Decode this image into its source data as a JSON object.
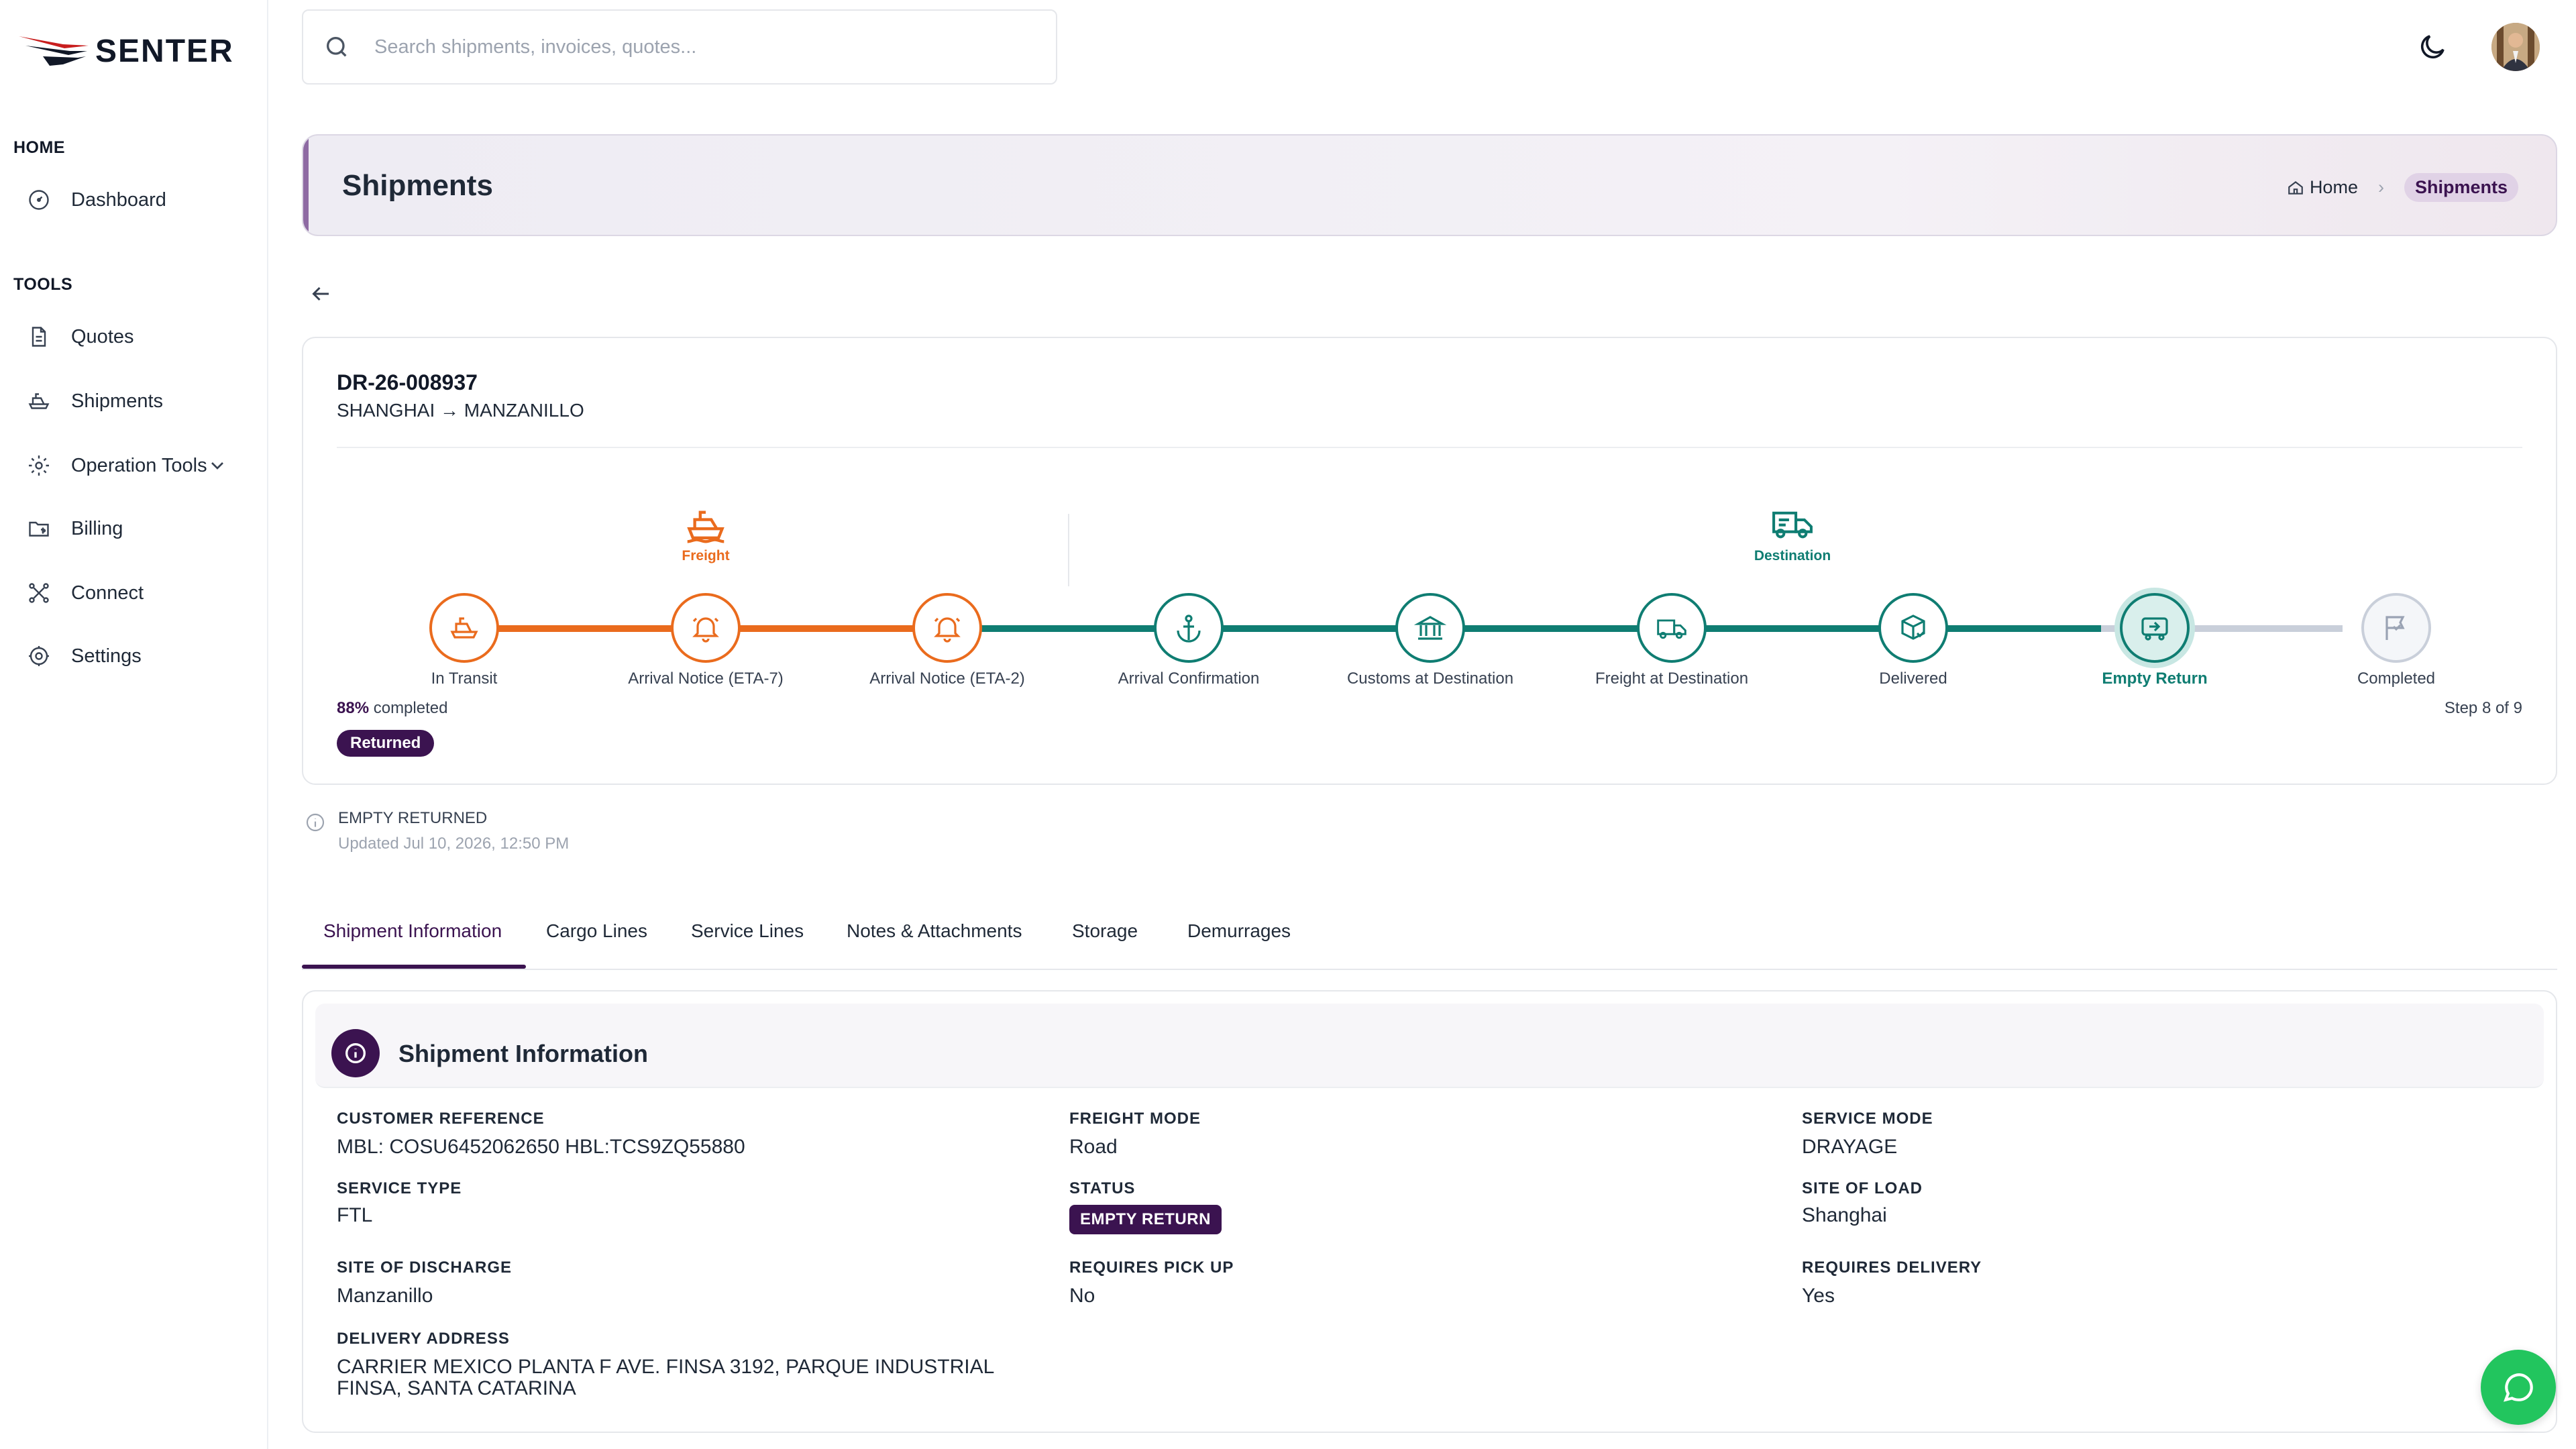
{
  "brand": {
    "name": "SENTER"
  },
  "sidebar": {
    "sections": [
      {
        "title": "HOME",
        "items": [
          {
            "label": "Dashboard",
            "icon": "gauge-icon"
          }
        ]
      },
      {
        "title": "TOOLS",
        "items": [
          {
            "label": "Quotes",
            "icon": "document-icon"
          },
          {
            "label": "Shipments",
            "icon": "ship-icon"
          },
          {
            "label": "Operation Tools",
            "icon": "gear-cog-icon",
            "expandable": true
          },
          {
            "label": "Billing",
            "icon": "folder-dollar-icon"
          },
          {
            "label": "Connect",
            "icon": "connect-icon"
          },
          {
            "label": "Settings",
            "icon": "settings-icon"
          }
        ]
      }
    ]
  },
  "search": {
    "placeholder": "Search shipments, invoices, quotes..."
  },
  "header": {
    "title": "Shipments",
    "breadcrumb": {
      "home": "Home",
      "current": "Shipments"
    }
  },
  "shipment": {
    "reference": "DR-26-008937",
    "route": "SHANGHAI → MANZANILLO",
    "phases": {
      "freight": "Freight",
      "destination": "Destination"
    },
    "steps": [
      {
        "label": "In Transit",
        "state": "done",
        "phase": "freight"
      },
      {
        "label": "Arrival Notice (ETA-7)",
        "state": "done",
        "phase": "freight"
      },
      {
        "label": "Arrival Notice (ETA-2)",
        "state": "done",
        "phase": "freight"
      },
      {
        "label": "Arrival Confirmation",
        "state": "done",
        "phase": "destination"
      },
      {
        "label": "Customs at Destination",
        "state": "done",
        "phase": "destination"
      },
      {
        "label": "Freight at Destination",
        "state": "done",
        "phase": "destination"
      },
      {
        "label": "Delivered",
        "state": "done",
        "phase": "destination"
      },
      {
        "label": "Empty Return",
        "state": "current",
        "phase": "destination"
      },
      {
        "label": "Completed",
        "state": "pending",
        "phase": "destination"
      }
    ],
    "progress_pct": "88%",
    "progress_suffix": "completed",
    "step_text": "Step 8 of 9",
    "status_pill": "Returned",
    "status_note": {
      "title": "EMPTY RETURNED",
      "updated": "Updated Jul 10, 2026, 12:50 PM"
    }
  },
  "tabs": [
    "Shipment Information",
    "Cargo Lines",
    "Service Lines",
    "Notes & Attachments",
    "Storage",
    "Demurrages"
  ],
  "info": {
    "title": "Shipment Information",
    "fields": {
      "customer_reference": {
        "label": "CUSTOMER REFERENCE",
        "value": "MBL: COSU6452062650 HBL:TCS9ZQ55880"
      },
      "freight_mode": {
        "label": "FREIGHT MODE",
        "value": "Road"
      },
      "service_mode": {
        "label": "SERVICE MODE",
        "value": "DRAYAGE"
      },
      "service_type": {
        "label": "SERVICE TYPE",
        "value": "FTL"
      },
      "status": {
        "label": "STATUS",
        "value": "EMPTY RETURN"
      },
      "site_of_load": {
        "label": "SITE OF LOAD",
        "value": "Shanghai"
      },
      "site_of_discharge": {
        "label": "SITE OF DISCHARGE",
        "value": "Manzanillo"
      },
      "requires_pick_up": {
        "label": "REQUIRES PICK UP",
        "value": "No"
      },
      "requires_delivery": {
        "label": "REQUIRES DELIVERY",
        "value": "Yes"
      },
      "delivery_address": {
        "label": "DELIVERY ADDRESS",
        "value": "CARRIER MEXICO PLANTA F AVE. FINSA 3192, PARQUE INDUSTRIAL FINSA, SANTA CATARINA"
      }
    }
  },
  "colors": {
    "primary": "#3b1350",
    "orange": "#ea6b1d",
    "teal": "#0f7d72",
    "chat": "#22c55e"
  }
}
